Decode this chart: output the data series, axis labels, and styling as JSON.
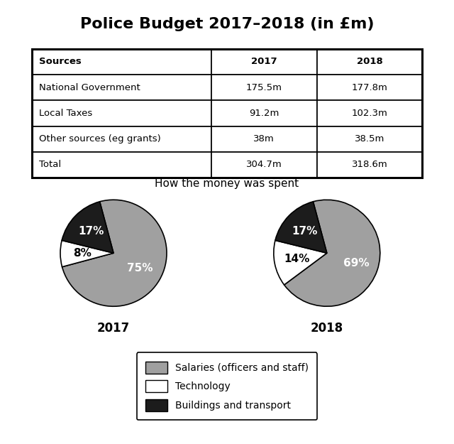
{
  "title": "Police Budget 2017–2018 (in £m)",
  "table": {
    "headers": [
      "Sources",
      "2017",
      "2018"
    ],
    "rows": [
      [
        "National Government",
        "175.5m",
        "177.8m"
      ],
      [
        "Local Taxes",
        "91.2m",
        "102.3m"
      ],
      [
        "Other sources (eg grants)",
        "38m",
        "38.5m"
      ],
      [
        "Total",
        "304.7m",
        "318.6m"
      ]
    ]
  },
  "pie_title": "How the money was spent",
  "pie_2017": {
    "label": "2017",
    "values": [
      75,
      8,
      17
    ],
    "colors": [
      "#a0a0a0",
      "#ffffff",
      "#1c1c1c"
    ],
    "pct_labels": [
      "75%",
      "8%",
      "17%"
    ],
    "pct_colors": [
      "white",
      "black",
      "white"
    ],
    "startangle": 105
  },
  "pie_2018": {
    "label": "2018",
    "values": [
      69,
      14,
      17
    ],
    "colors": [
      "#a0a0a0",
      "#ffffff",
      "#1c1c1c"
    ],
    "pct_labels": [
      "69%",
      "14%",
      "17%"
    ],
    "pct_colors": [
      "white",
      "black",
      "white"
    ],
    "startangle": 105
  },
  "legend_labels": [
    "Salaries (officers and staff)",
    "Technology",
    "Buildings and transport"
  ],
  "legend_colors": [
    "#a0a0a0",
    "#ffffff",
    "#1c1c1c"
  ],
  "background_color": "#ffffff",
  "text_color": "#000000"
}
